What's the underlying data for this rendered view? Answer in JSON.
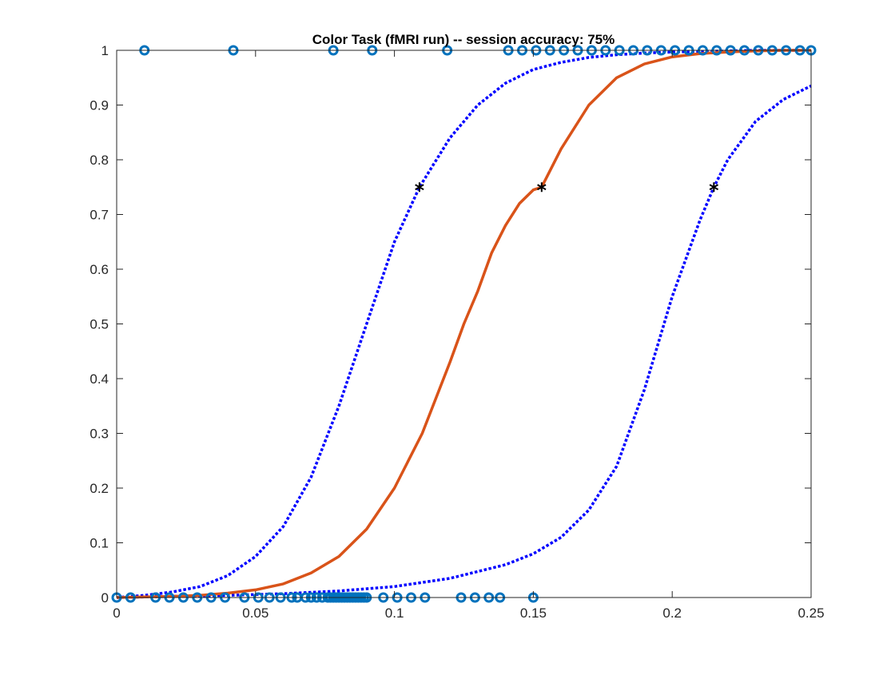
{
  "chart_data": {
    "type": "scatter",
    "title": "Color Task (fMRI run) -- session accuracy: 75%",
    "xlabel": "",
    "ylabel": "",
    "xlim": [
      0,
      0.25
    ],
    "ylim": [
      0,
      1
    ],
    "xticks": [
      0,
      0.05,
      0.1,
      0.15,
      0.2,
      0.25
    ],
    "xtick_labels": [
      "0",
      "0.05",
      "0.1",
      "0.15",
      "0.2",
      "0.25"
    ],
    "yticks": [
      0,
      0.1,
      0.2,
      0.3,
      0.4,
      0.5,
      0.6,
      0.7,
      0.8,
      0.9,
      1
    ],
    "ytick_labels": [
      "0",
      "0.1",
      "0.2",
      "0.3",
      "0.4",
      "0.5",
      "0.6",
      "0.7",
      "0.8",
      "0.9",
      "1"
    ],
    "grid": false,
    "legend": "none",
    "colors": {
      "trials": "#0072BD",
      "fit": "#D95319",
      "bounds": "#0000FF",
      "threshold": "#000000",
      "axes": "#262626"
    },
    "series": [
      {
        "kind": "trials-correct",
        "x": [
          0.01,
          0.042,
          0.078,
          0.092,
          0.119,
          0.141,
          0.146,
          0.151,
          0.156,
          0.161,
          0.166,
          0.171,
          0.176,
          0.181,
          0.186,
          0.191,
          0.196,
          0.201,
          0.206,
          0.211,
          0.216,
          0.221,
          0.226,
          0.231,
          0.236,
          0.241,
          0.246,
          0.25
        ],
        "y": [
          1,
          1,
          1,
          1,
          1,
          1,
          1,
          1,
          1,
          1,
          1,
          1,
          1,
          1,
          1,
          1,
          1,
          1,
          1,
          1,
          1,
          1,
          1,
          1,
          1,
          1,
          1,
          1
        ]
      },
      {
        "kind": "trials-incorrect",
        "x": [
          0,
          0.005,
          0.014,
          0.019,
          0.024,
          0.029,
          0.034,
          0.039,
          0.046,
          0.051,
          0.055,
          0.059,
          0.063,
          0.065,
          0.068,
          0.07,
          0.072,
          0.074,
          0.076,
          0.077,
          0.078,
          0.079,
          0.08,
          0.081,
          0.082,
          0.083,
          0.084,
          0.085,
          0.086,
          0.087,
          0.088,
          0.089,
          0.09,
          0.096,
          0.101,
          0.106,
          0.111,
          0.124,
          0.129,
          0.134,
          0.138,
          0.15
        ],
        "y": [
          0,
          0,
          0,
          0,
          0,
          0,
          0,
          0,
          0,
          0,
          0,
          0,
          0,
          0,
          0,
          0,
          0,
          0,
          0,
          0,
          0,
          0,
          0,
          0,
          0,
          0,
          0,
          0,
          0,
          0,
          0,
          0,
          0,
          0,
          0,
          0,
          0,
          0,
          0,
          0,
          0,
          0
        ]
      },
      {
        "kind": "fit",
        "x": [
          0,
          0.01,
          0.02,
          0.03,
          0.04,
          0.05,
          0.06,
          0.07,
          0.08,
          0.09,
          0.1,
          0.11,
          0.12,
          0.125,
          0.13,
          0.135,
          0.14,
          0.145,
          0.15,
          0.153,
          0.16,
          0.17,
          0.18,
          0.19,
          0.2,
          0.21,
          0.22,
          0.23,
          0.24,
          0.25
        ],
        "y": [
          0,
          0.001,
          0.002,
          0.004,
          0.008,
          0.014,
          0.025,
          0.045,
          0.075,
          0.125,
          0.2,
          0.3,
          0.43,
          0.5,
          0.56,
          0.63,
          0.68,
          0.72,
          0.745,
          0.75,
          0.82,
          0.9,
          0.95,
          0.975,
          0.988,
          0.994,
          0.997,
          0.999,
          1,
          1
        ]
      },
      {
        "kind": "lower-bound",
        "x": [
          0,
          0.01,
          0.02,
          0.03,
          0.04,
          0.05,
          0.06,
          0.07,
          0.08,
          0.09,
          0.1,
          0.109,
          0.12,
          0.13,
          0.14,
          0.15,
          0.16,
          0.17,
          0.18,
          0.19,
          0.2,
          0.21,
          0.22,
          0.23,
          0.24,
          0.25
        ],
        "y": [
          0,
          0.004,
          0.01,
          0.02,
          0.04,
          0.075,
          0.13,
          0.22,
          0.35,
          0.5,
          0.65,
          0.75,
          0.84,
          0.9,
          0.94,
          0.965,
          0.978,
          0.987,
          0.992,
          0.995,
          0.997,
          0.998,
          0.999,
          1,
          1,
          1
        ]
      },
      {
        "kind": "upper-bound",
        "x": [
          0,
          0.02,
          0.04,
          0.06,
          0.08,
          0.1,
          0.12,
          0.14,
          0.15,
          0.16,
          0.17,
          0.18,
          0.19,
          0.2,
          0.21,
          0.215,
          0.22,
          0.23,
          0.24,
          0.25
        ],
        "y": [
          0,
          0.002,
          0.004,
          0.007,
          0.012,
          0.02,
          0.035,
          0.06,
          0.08,
          0.11,
          0.16,
          0.24,
          0.38,
          0.55,
          0.69,
          0.75,
          0.8,
          0.87,
          0.91,
          0.935
        ]
      },
      {
        "kind": "thresholds",
        "x": [
          0.109,
          0.153,
          0.215
        ],
        "y": [
          0.75,
          0.75,
          0.75
        ]
      }
    ]
  }
}
